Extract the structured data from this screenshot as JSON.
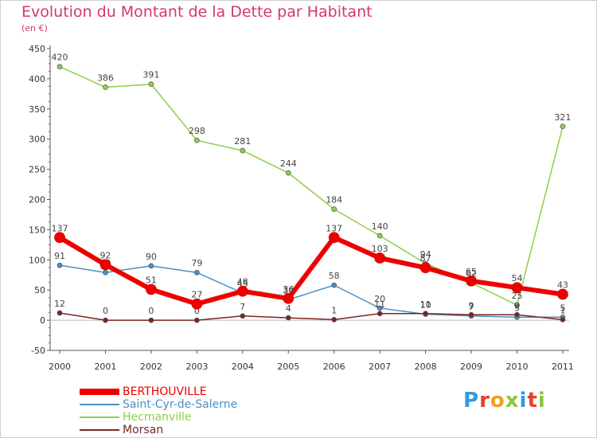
{
  "title": "Evolution du Montant de la Dette par Habitant",
  "subtitle": "(en €)",
  "logo": {
    "text": "Proxiti",
    "colors": [
      "#2f9be0",
      "#e8402e",
      "#f0a020",
      "#8cc63e",
      "#2f9be0",
      "#e8402e",
      "#8cc63e"
    ]
  },
  "chart_data": {
    "type": "line",
    "x": [
      "2000",
      "2001",
      "2002",
      "2003",
      "2004",
      "2005",
      "2006",
      "2007",
      "2008",
      "2009",
      "2010",
      "2011"
    ],
    "ylim": [
      -50,
      450
    ],
    "yticks": [
      "-50",
      "0",
      "50",
      "100",
      "150",
      "200",
      "250",
      "300",
      "350",
      "400",
      "450"
    ],
    "grid": false,
    "legend_position": "bottom-left",
    "series": [
      {
        "name": "BERTHOUVILLE",
        "color": "#ee0000",
        "values": [
          137,
          92,
          51,
          27,
          48,
          36,
          137,
          103,
          87,
          65,
          54,
          43
        ],
        "labels": [
          "137",
          "92",
          "51",
          "27",
          "48",
          "36",
          "137",
          "103",
          "87",
          "65",
          "54",
          "43"
        ]
      },
      {
        "name": "Saint-Cyr-de-Salerne",
        "color": "#4a90c8",
        "values": [
          91,
          79,
          90,
          79,
          45,
          34,
          58,
          20,
          10,
          7,
          5,
          5
        ],
        "labels": [
          "91",
          "79",
          "90",
          "79",
          "45",
          "34",
          "58",
          "20",
          "10",
          "7",
          "5",
          "5"
        ]
      },
      {
        "name": "Hecmanville",
        "color": "#8cd048",
        "values": [
          420,
          386,
          391,
          298,
          281,
          244,
          184,
          140,
          94,
          62,
          25,
          321
        ],
        "labels": [
          "420",
          "386",
          "391",
          "298",
          "281",
          "244",
          "184",
          "140",
          "94",
          "62",
          "25",
          "321"
        ]
      },
      {
        "name": "Morsan",
        "color": "#7b2424",
        "values": [
          12,
          0,
          0,
          0,
          7,
          4,
          1,
          11,
          11,
          9,
          9,
          1
        ],
        "labels": [
          "12",
          "0",
          "0",
          "0",
          "7",
          "4",
          "1",
          "11",
          "11",
          "9",
          "9",
          "1"
        ]
      }
    ]
  }
}
